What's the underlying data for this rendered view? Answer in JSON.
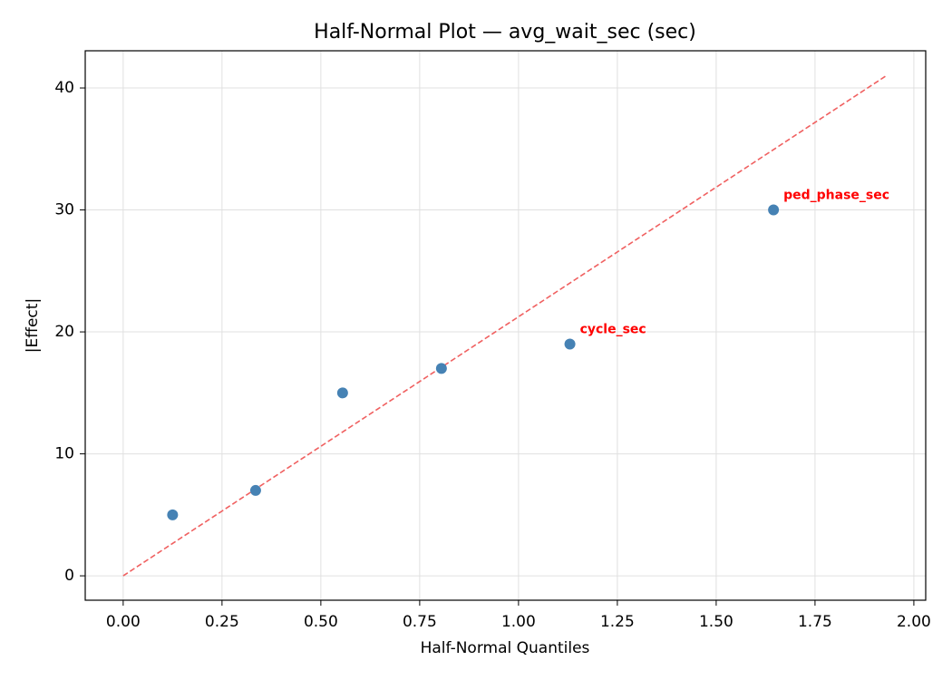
{
  "chart_data": {
    "type": "scatter",
    "title": "Half-Normal Plot — avg_wait_sec (sec)",
    "x_label": "Half-Normal Quantiles",
    "y_label": "|Effect|",
    "series": [
      {
        "name": "effects",
        "color": "#4682b4",
        "x": [
          0.125,
          0.335,
          0.555,
          0.805,
          1.13,
          1.645
        ],
        "values": [
          5,
          7,
          15,
          17,
          19,
          30
        ]
      }
    ],
    "point_labels": [
      null,
      null,
      null,
      null,
      "cycle_sec",
      "ped_phase_sec"
    ],
    "point_label_color": "#ff0000",
    "reference_line": {
      "x": [
        0,
        1.93
      ],
      "y": [
        0,
        41
      ],
      "color": "#f06060"
    },
    "xlim": [
      -0.096,
      2.03
    ],
    "ylim": [
      -2.0,
      43.05
    ],
    "xticks": [
      {
        "value": 0,
        "label": "0.00"
      },
      {
        "value": 0.25,
        "label": "0.25"
      },
      {
        "value": 0.5,
        "label": "0.50"
      },
      {
        "value": 0.75,
        "label": "0.75"
      },
      {
        "value": 1,
        "label": "1.00"
      },
      {
        "value": 1.25,
        "label": "1.25"
      },
      {
        "value": 1.5,
        "label": "1.50"
      },
      {
        "value": 1.75,
        "label": "1.75"
      },
      {
        "value": 2,
        "label": "2.00"
      }
    ],
    "yticks": [
      0,
      10,
      20,
      30,
      40
    ],
    "grid": true
  }
}
